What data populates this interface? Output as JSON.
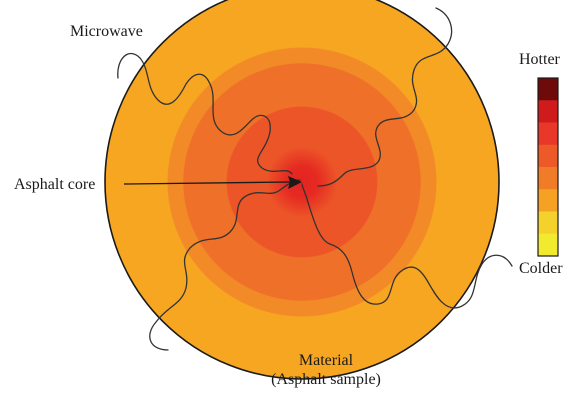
{
  "labels": {
    "microwave": "Microwave",
    "asphalt_core": "Asphalt core",
    "material_line1": "Material",
    "material_line2": "(Asphalt sample)",
    "hotter": "Hotter",
    "colder": "Colder"
  },
  "colors": {
    "outer_ring": "#f7a622",
    "ring_2": "#f28a28",
    "ring_3": "#ef7028",
    "ring_4": "#ec5528",
    "core": "#e42421",
    "outline": "#1a1a1a",
    "wave": "#333333"
  },
  "color_scale": {
    "top_label": "Hotter",
    "bottom_label": "Colder",
    "swatches": [
      "#6e0a0a",
      "#cf1b1b",
      "#e8382a",
      "#ee5a27",
      "#f17c27",
      "#f5a123",
      "#f5d22b",
      "#f2ea2f"
    ]
  }
}
